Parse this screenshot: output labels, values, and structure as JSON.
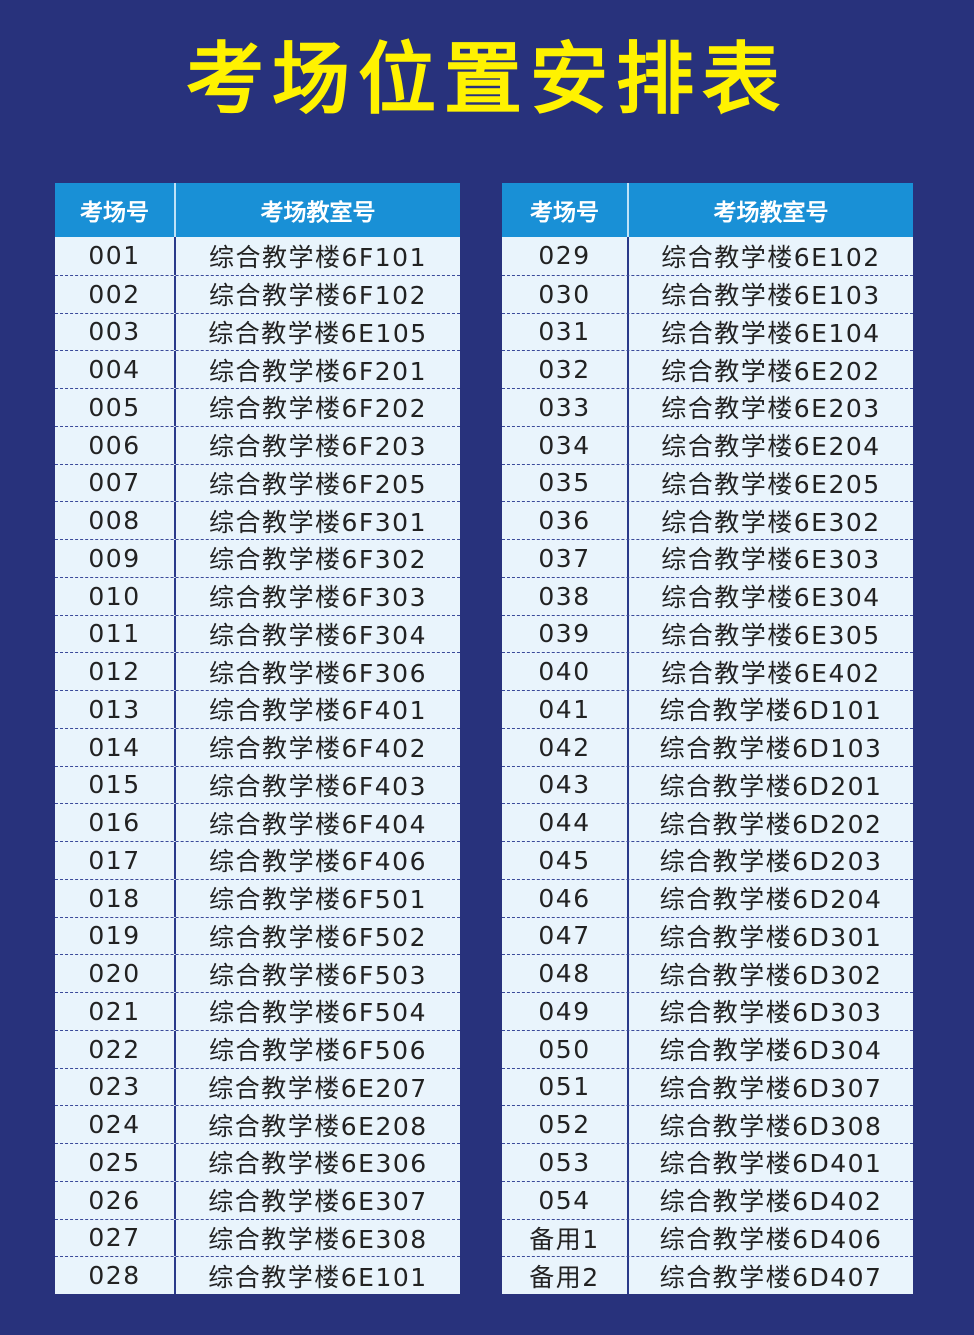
{
  "title": "考场位置安排表",
  "colors": {
    "background": "#28327c",
    "title": "#fff200",
    "header": "#1990d6",
    "row": "#e9f4fc"
  },
  "tables": [
    {
      "headers": [
        "考场号",
        "考场教室号"
      ],
      "rows": [
        [
          "001",
          "综合教学楼6F101"
        ],
        [
          "002",
          "综合教学楼6F102"
        ],
        [
          "003",
          "综合教学楼6E105"
        ],
        [
          "004",
          "综合教学楼6F201"
        ],
        [
          "005",
          "综合教学楼6F202"
        ],
        [
          "006",
          "综合教学楼6F203"
        ],
        [
          "007",
          "综合教学楼6F205"
        ],
        [
          "008",
          "综合教学楼6F301"
        ],
        [
          "009",
          "综合教学楼6F302"
        ],
        [
          "010",
          "综合教学楼6F303"
        ],
        [
          "011",
          "综合教学楼6F304"
        ],
        [
          "012",
          "综合教学楼6F306"
        ],
        [
          "013",
          "综合教学楼6F401"
        ],
        [
          "014",
          "综合教学楼6F402"
        ],
        [
          "015",
          "综合教学楼6F403"
        ],
        [
          "016",
          "综合教学楼6F404"
        ],
        [
          "017",
          "综合教学楼6F406"
        ],
        [
          "018",
          "综合教学楼6F501"
        ],
        [
          "019",
          "综合教学楼6F502"
        ],
        [
          "020",
          "综合教学楼6F503"
        ],
        [
          "021",
          "综合教学楼6F504"
        ],
        [
          "022",
          "综合教学楼6F506"
        ],
        [
          "023",
          "综合教学楼6E207"
        ],
        [
          "024",
          "综合教学楼6E208"
        ],
        [
          "025",
          "综合教学楼6E306"
        ],
        [
          "026",
          "综合教学楼6E307"
        ],
        [
          "027",
          "综合教学楼6E308"
        ],
        [
          "028",
          "综合教学楼6E101"
        ]
      ]
    },
    {
      "headers": [
        "考场号",
        "考场教室号"
      ],
      "rows": [
        [
          "029",
          "综合教学楼6E102"
        ],
        [
          "030",
          "综合教学楼6E103"
        ],
        [
          "031",
          "综合教学楼6E104"
        ],
        [
          "032",
          "综合教学楼6E202"
        ],
        [
          "033",
          "综合教学楼6E203"
        ],
        [
          "034",
          "综合教学楼6E204"
        ],
        [
          "035",
          "综合教学楼6E205"
        ],
        [
          "036",
          "综合教学楼6E302"
        ],
        [
          "037",
          "综合教学楼6E303"
        ],
        [
          "038",
          "综合教学楼6E304"
        ],
        [
          "039",
          "综合教学楼6E305"
        ],
        [
          "040",
          "综合教学楼6E402"
        ],
        [
          "041",
          "综合教学楼6D101"
        ],
        [
          "042",
          "综合教学楼6D103"
        ],
        [
          "043",
          "综合教学楼6D201"
        ],
        [
          "044",
          "综合教学楼6D202"
        ],
        [
          "045",
          "综合教学楼6D203"
        ],
        [
          "046",
          "综合教学楼6D204"
        ],
        [
          "047",
          "综合教学楼6D301"
        ],
        [
          "048",
          "综合教学楼6D302"
        ],
        [
          "049",
          "综合教学楼6D303"
        ],
        [
          "050",
          "综合教学楼6D304"
        ],
        [
          "051",
          "综合教学楼6D307"
        ],
        [
          "052",
          "综合教学楼6D308"
        ],
        [
          "053",
          "综合教学楼6D401"
        ],
        [
          "054",
          "综合教学楼6D402"
        ],
        [
          "备用1",
          "综合教学楼6D406"
        ],
        [
          "备用2",
          "综合教学楼6D407"
        ]
      ]
    }
  ]
}
